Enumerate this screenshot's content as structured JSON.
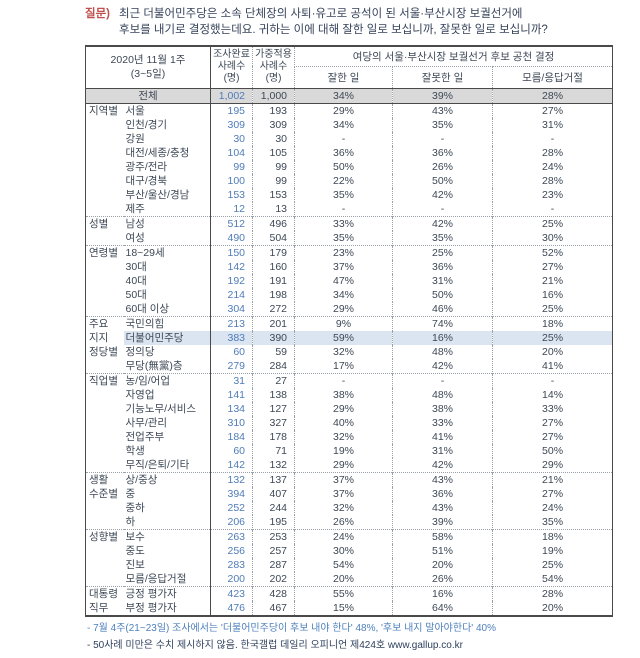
{
  "question": {
    "label": "질문)",
    "line1": "최근 더불어민주당은 소속 단체장의 사퇴·유고로 공석이 된 서울·부산시장 보궐선거에",
    "line2": "후보를 내기로 결정했는데요. 귀하는 이에 대해 잘한 일로 보십니까, 잘못한 일로 보십니까?"
  },
  "table": {
    "header": {
      "period": "2020년 11월 1주\n(3~5일)",
      "completed": "조사완료\n사례수\n(명)",
      "weighted": "가중적용\n사례수\n(명)",
      "group": "여당의 서울·부산시장 보궐선거 후보 공천 결정",
      "cols": [
        "잘한 일",
        "잘못한 일",
        "모름/응답거절"
      ]
    },
    "total": {
      "label": "전체",
      "n1": "1,002",
      "n2": "1,000",
      "p1": "34%",
      "p2": "39%",
      "p3": "28%"
    },
    "rows": [
      {
        "group": "지역별",
        "label": "서울",
        "n1": "195",
        "n2": "193",
        "p1": "29%",
        "p2": "43%",
        "p3": "27%",
        "section_start": false,
        "highlight": false
      },
      {
        "group": "",
        "label": "인천/경기",
        "n1": "309",
        "n2": "309",
        "p1": "34%",
        "p2": "35%",
        "p3": "31%",
        "section_start": false,
        "highlight": false
      },
      {
        "group": "",
        "label": "강원",
        "n1": "30",
        "n2": "30",
        "p1": "-",
        "p2": "-",
        "p3": "-",
        "section_start": false,
        "highlight": false
      },
      {
        "group": "",
        "label": "대전/세종/충청",
        "n1": "104",
        "n2": "105",
        "p1": "36%",
        "p2": "36%",
        "p3": "28%",
        "section_start": false,
        "highlight": false
      },
      {
        "group": "",
        "label": "광주/전라",
        "n1": "99",
        "n2": "99",
        "p1": "50%",
        "p2": "26%",
        "p3": "24%",
        "section_start": false,
        "highlight": false
      },
      {
        "group": "",
        "label": "대구/경북",
        "n1": "100",
        "n2": "99",
        "p1": "22%",
        "p2": "50%",
        "p3": "28%",
        "section_start": false,
        "highlight": false
      },
      {
        "group": "",
        "label": "부산/울산/경남",
        "n1": "153",
        "n2": "153",
        "p1": "35%",
        "p2": "42%",
        "p3": "23%",
        "section_start": false,
        "highlight": false
      },
      {
        "group": "",
        "label": "제주",
        "n1": "12",
        "n2": "13",
        "p1": "-",
        "p2": "-",
        "p3": "-",
        "section_start": false,
        "highlight": false
      },
      {
        "group": "성별",
        "label": "남성",
        "n1": "512",
        "n2": "496",
        "p1": "33%",
        "p2": "42%",
        "p3": "25%",
        "section_start": true,
        "highlight": false
      },
      {
        "group": "",
        "label": "여성",
        "n1": "490",
        "n2": "504",
        "p1": "35%",
        "p2": "35%",
        "p3": "30%",
        "section_start": false,
        "highlight": false
      },
      {
        "group": "연령별",
        "label": "18~29세",
        "n1": "150",
        "n2": "179",
        "p1": "23%",
        "p2": "25%",
        "p3": "52%",
        "section_start": true,
        "highlight": false
      },
      {
        "group": "",
        "label": "30대",
        "n1": "142",
        "n2": "160",
        "p1": "37%",
        "p2": "36%",
        "p3": "27%",
        "section_start": false,
        "highlight": false
      },
      {
        "group": "",
        "label": "40대",
        "n1": "192",
        "n2": "191",
        "p1": "47%",
        "p2": "31%",
        "p3": "21%",
        "section_start": false,
        "highlight": false
      },
      {
        "group": "",
        "label": "50대",
        "n1": "214",
        "n2": "198",
        "p1": "34%",
        "p2": "50%",
        "p3": "16%",
        "section_start": false,
        "highlight": false
      },
      {
        "group": "",
        "label": "60대 이상",
        "n1": "304",
        "n2": "272",
        "p1": "29%",
        "p2": "46%",
        "p3": "25%",
        "section_start": false,
        "highlight": false
      },
      {
        "group": "주요",
        "label": "국민의힘",
        "n1": "213",
        "n2": "201",
        "p1": "9%",
        "p2": "74%",
        "p3": "18%",
        "section_start": true,
        "highlight": false
      },
      {
        "group": "지지",
        "label": "더불어민주당",
        "n1": "383",
        "n2": "390",
        "p1": "59%",
        "p2": "16%",
        "p3": "25%",
        "section_start": false,
        "highlight": true
      },
      {
        "group": "정당별",
        "label": "정의당",
        "n1": "60",
        "n2": "59",
        "p1": "32%",
        "p2": "48%",
        "p3": "20%",
        "section_start": false,
        "highlight": false
      },
      {
        "group": "",
        "label": "무당(無黨)층",
        "n1": "279",
        "n2": "284",
        "p1": "17%",
        "p2": "42%",
        "p3": "41%",
        "section_start": false,
        "highlight": false
      },
      {
        "group": "직업별",
        "label": "농/임/어업",
        "n1": "31",
        "n2": "27",
        "p1": "-",
        "p2": "-",
        "p3": "-",
        "section_start": true,
        "highlight": false
      },
      {
        "group": "",
        "label": "자영업",
        "n1": "141",
        "n2": "138",
        "p1": "38%",
        "p2": "48%",
        "p3": "14%",
        "section_start": false,
        "highlight": false
      },
      {
        "group": "",
        "label": "기능노무/서비스",
        "n1": "134",
        "n2": "127",
        "p1": "29%",
        "p2": "38%",
        "p3": "33%",
        "section_start": false,
        "highlight": false
      },
      {
        "group": "",
        "label": "사무/관리",
        "n1": "310",
        "n2": "327",
        "p1": "40%",
        "p2": "33%",
        "p3": "27%",
        "section_start": false,
        "highlight": false
      },
      {
        "group": "",
        "label": "전업주부",
        "n1": "184",
        "n2": "178",
        "p1": "32%",
        "p2": "41%",
        "p3": "27%",
        "section_start": false,
        "highlight": false
      },
      {
        "group": "",
        "label": "학생",
        "n1": "60",
        "n2": "71",
        "p1": "19%",
        "p2": "31%",
        "p3": "50%",
        "section_start": false,
        "highlight": false
      },
      {
        "group": "",
        "label": "무직/은퇴/기타",
        "n1": "142",
        "n2": "132",
        "p1": "29%",
        "p2": "42%",
        "p3": "29%",
        "section_start": false,
        "highlight": false
      },
      {
        "group": "생활",
        "label": "상/중상",
        "n1": "132",
        "n2": "137",
        "p1": "37%",
        "p2": "43%",
        "p3": "21%",
        "section_start": true,
        "highlight": false
      },
      {
        "group": "수준별",
        "label": "중",
        "n1": "394",
        "n2": "407",
        "p1": "37%",
        "p2": "36%",
        "p3": "27%",
        "section_start": false,
        "highlight": false
      },
      {
        "group": "",
        "label": "중하",
        "n1": "252",
        "n2": "244",
        "p1": "32%",
        "p2": "43%",
        "p3": "24%",
        "section_start": false,
        "highlight": false
      },
      {
        "group": "",
        "label": "하",
        "n1": "206",
        "n2": "195",
        "p1": "26%",
        "p2": "39%",
        "p3": "35%",
        "section_start": false,
        "highlight": false
      },
      {
        "group": "성향별",
        "label": "보수",
        "n1": "263",
        "n2": "253",
        "p1": "24%",
        "p2": "58%",
        "p3": "18%",
        "section_start": true,
        "highlight": false
      },
      {
        "group": "",
        "label": "중도",
        "n1": "256",
        "n2": "257",
        "p1": "30%",
        "p2": "51%",
        "p3": "19%",
        "section_start": false,
        "highlight": false
      },
      {
        "group": "",
        "label": "진보",
        "n1": "283",
        "n2": "287",
        "p1": "54%",
        "p2": "20%",
        "p3": "25%",
        "section_start": false,
        "highlight": false
      },
      {
        "group": "",
        "label": "모름/응답거절",
        "n1": "200",
        "n2": "202",
        "p1": "20%",
        "p2": "26%",
        "p3": "54%",
        "section_start": false,
        "highlight": false
      },
      {
        "group": "대통령",
        "label": "긍정 평가자",
        "n1": "423",
        "n2": "428",
        "p1": "55%",
        "p2": "16%",
        "p3": "28%",
        "section_start": true,
        "highlight": false
      },
      {
        "group": "직무",
        "label": "부정 평가자",
        "n1": "476",
        "n2": "467",
        "p1": "15%",
        "p2": "64%",
        "p3": "20%",
        "section_start": false,
        "highlight": false
      }
    ]
  },
  "footnotes": [
    "- 7월 4주(21~23일) 조사에서는 '더불어민주당이 후보 내야 한다' 48%, '후보 내지 말아야한다' 40%",
    "- 50사례 미만은 수치 제시하지 않음. 한국갤럽 데일리 오피니언 제424호 www.gallup.co.kr"
  ],
  "colors": {
    "question_label": "#c0504d",
    "sample_number_blue": "#4f7cb8",
    "highlight_row_bg": "#dbe5f1",
    "total_row_bg": "#d9d9d9",
    "footnote_blue": "#4f81bd",
    "body_text": "#3d4856"
  }
}
